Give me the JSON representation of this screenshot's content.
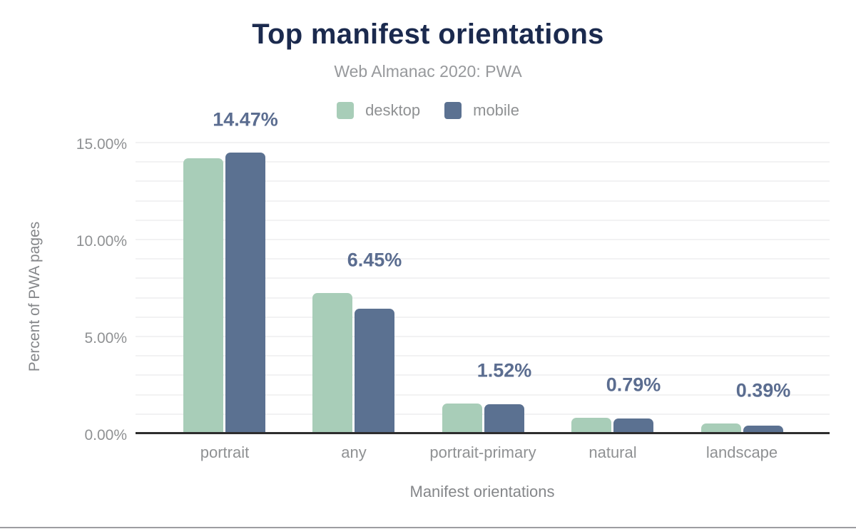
{
  "header": {
    "title": "Top manifest orientations",
    "subtitle": "Web Almanac 2020: PWA"
  },
  "legend": {
    "items": [
      {
        "label": "desktop",
        "color": "#a8cdb8"
      },
      {
        "label": "mobile",
        "color": "#5b7191"
      }
    ]
  },
  "chart_data": {
    "type": "bar",
    "title": "Top manifest orientations",
    "subtitle": "Web Almanac 2020: PWA",
    "categories": [
      "portrait",
      "any",
      "portrait-primary",
      "natural",
      "landscape"
    ],
    "series": [
      {
        "name": "desktop",
        "color": "#a8cdb8",
        "values": [
          14.18,
          7.25,
          1.55,
          0.81,
          0.51
        ]
      },
      {
        "name": "mobile",
        "color": "#5b7191",
        "values": [
          14.47,
          6.45,
          1.52,
          0.79,
          0.39
        ]
      }
    ],
    "value_labels": [
      {
        "category": "portrait",
        "text": "14.47%"
      },
      {
        "category": "any",
        "text": "6.45%"
      },
      {
        "category": "portrait-primary",
        "text": "1.52%"
      },
      {
        "category": "natural",
        "text": "0.79%"
      },
      {
        "category": "landscape",
        "text": "0.39%"
      }
    ],
    "xlabel": "Manifest orientations",
    "ylabel": "Percent of PWA pages",
    "y_ticks": [
      {
        "label": "0.00%",
        "value": 0
      },
      {
        "label": "5.00%",
        "value": 5
      },
      {
        "label": "10.00%",
        "value": 10
      },
      {
        "label": "15.00%",
        "value": 15
      }
    ],
    "ylim": [
      0,
      15
    ],
    "grid": true,
    "grid_step": 1,
    "legend_position": "top"
  },
  "colors": {
    "background": "#ffffff",
    "title": "#1b2a4e",
    "subtitle": "#97999c",
    "axis_text": "#8f9193",
    "axis_title": "#85878a",
    "value_label": "#5b6d90",
    "gridline": "#f2f2f3",
    "axis_line": "#2d2d2d",
    "page_border": "#9d9da0"
  }
}
